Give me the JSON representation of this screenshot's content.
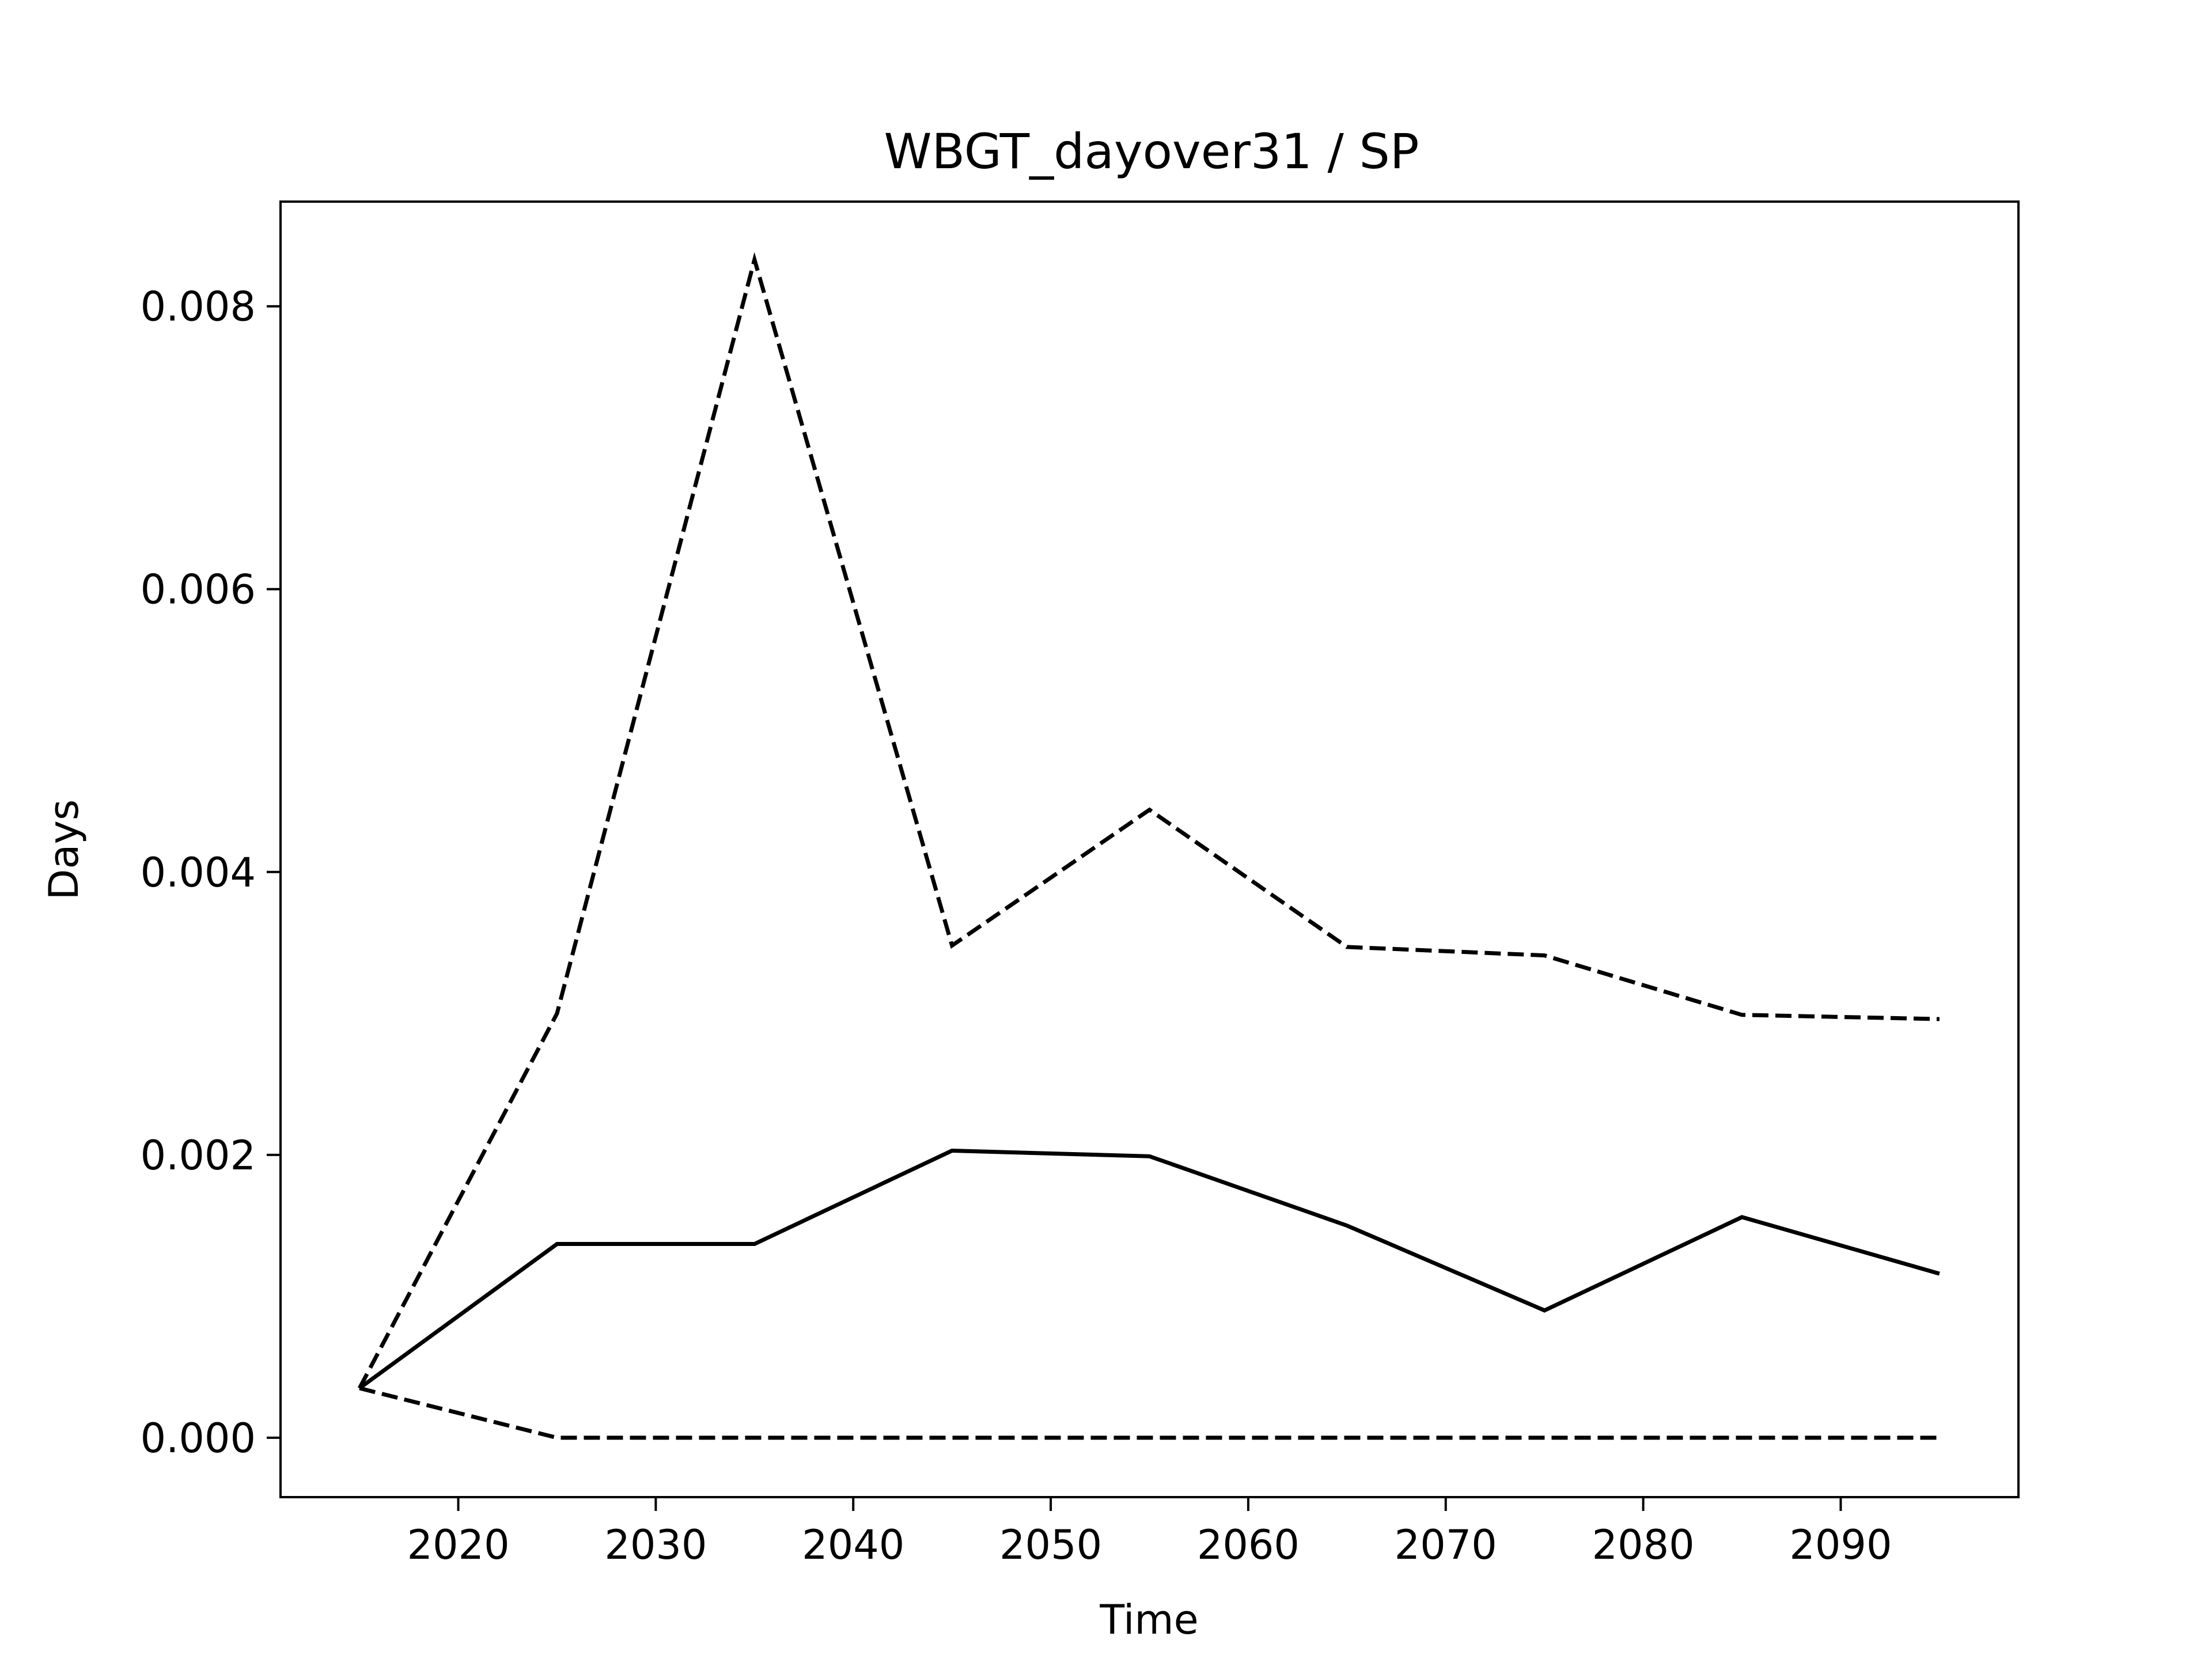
{
  "chart_data": {
    "type": "line",
    "title": "WBGT_dayover31 / SP",
    "xlabel": "Time",
    "ylabel": "Days",
    "xlim": [
      2011,
      2099
    ],
    "ylim": [
      -0.00042,
      0.00874
    ],
    "xticks": [
      2020,
      2030,
      2040,
      2050,
      2060,
      2070,
      2080,
      2090
    ],
    "xtick_labels": [
      "2020",
      "2030",
      "2040",
      "2050",
      "2060",
      "2070",
      "2080",
      "2090"
    ],
    "yticks": [
      0.0,
      0.002,
      0.004,
      0.006,
      0.008
    ],
    "ytick_labels": [
      "0.000",
      "0.002",
      "0.004",
      "0.006",
      "0.008"
    ],
    "grid": false,
    "legend": "none",
    "x": [
      2015,
      2025,
      2035,
      2045,
      2055,
      2065,
      2075,
      2085,
      2095
    ],
    "series": [
      {
        "style": "solid",
        "color": "#000000",
        "values": [
          0.00035,
          0.00137,
          0.00137,
          0.00203,
          0.00199,
          0.0015,
          0.0009,
          0.00156,
          0.00116
        ]
      },
      {
        "style": "dashed",
        "color": "#000000",
        "values": [
          0.00035,
          0.003,
          0.00833,
          0.00348,
          0.00444,
          0.00347,
          0.00341,
          0.00299,
          0.00296
        ]
      },
      {
        "style": "dashed",
        "color": "#000000",
        "values": [
          0.00035,
          0.0,
          0.0,
          0.0,
          0.0,
          0.0,
          0.0,
          0.0,
          0.0
        ]
      }
    ]
  }
}
